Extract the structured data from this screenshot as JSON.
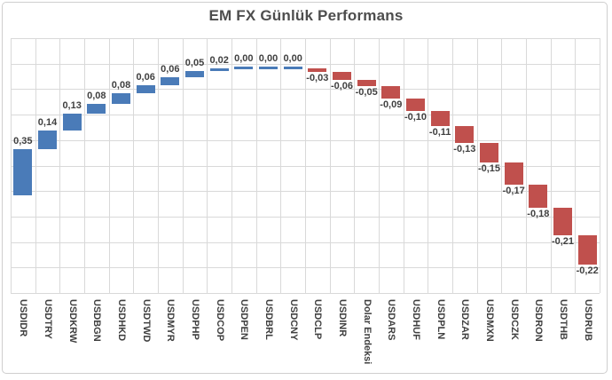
{
  "chart_data": {
    "type": "bar",
    "subtype": "waterfall",
    "title": "EM FX Günlük Performans",
    "categories": [
      "USDIDR",
      "USDTRY",
      "USDKRW",
      "USDBGN",
      "USDHKD",
      "USDTWD",
      "USDMYR",
      "USDPHP",
      "USDCOP",
      "USDPEN",
      "USDBRL",
      "USDCNY",
      "USDCLP",
      "USDINR",
      "Dolar Endeksi",
      "USDARS",
      "USDHUF",
      "USDPLN",
      "USDZAR",
      "USDMXN",
      "USDCZK",
      "USDRON",
      "USDTHB",
      "USDRUB"
    ],
    "values": [
      0.35,
      0.14,
      0.13,
      0.08,
      0.08,
      0.06,
      0.06,
      0.05,
      0.02,
      0.0,
      0.0,
      0.0,
      -0.03,
      -0.06,
      -0.05,
      -0.09,
      -0.1,
      -0.11,
      -0.13,
      -0.15,
      -0.17,
      -0.18,
      -0.21,
      -0.22
    ],
    "value_labels": [
      "0,35",
      "0,14",
      "0,13",
      "0,08",
      "0,08",
      "0,06",
      "0,06",
      "0,05",
      "0,02",
      "0,00",
      "0,00",
      "0,00",
      "-0,03",
      "-0,06",
      "-0,05",
      "-0,09",
      "-0,10",
      "-0,11",
      "-0,13",
      "-0,15",
      "-0,17",
      "-0,18",
      "-0,21",
      "-0,22"
    ],
    "waterfall_start": 0,
    "cumulative_peak": 0.97,
    "cumulative_end": -0.53,
    "xlabel": "",
    "ylabel": "",
    "ylim": [
      -0.75,
      1.2
    ],
    "y_axis_labels_visible": false,
    "legend": "none",
    "grid": {
      "horizontal_intervals": 10,
      "vertical_per_category": true,
      "color": "#D9D9D9"
    },
    "colors": {
      "positive_bar": "#4A7BB8",
      "negative_bar": "#C0504D",
      "zero_bar": "#4A7BB8",
      "label_text": "#404040",
      "title_text": "#4D4D4D",
      "frame_border": "#CFCECE",
      "background": "#FFFFFF"
    }
  }
}
